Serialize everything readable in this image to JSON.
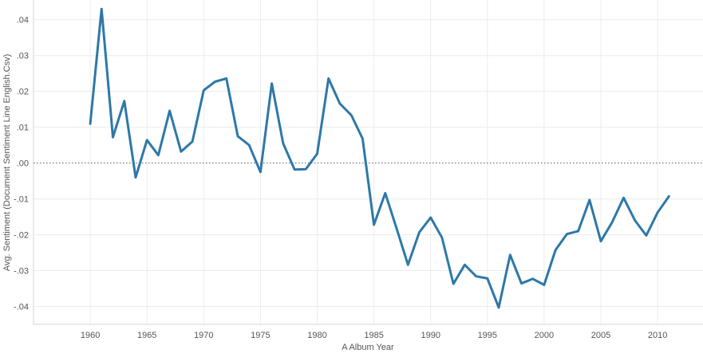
{
  "chart_data": {
    "type": "line",
    "title": "",
    "xlabel": "A Album Year",
    "ylabel": "Avg. Sentiment (Document Sentiment Line English.Csv)",
    "xlim": [
      1955,
      2014
    ],
    "ylim": [
      -0.045,
      0.0455
    ],
    "x_ticks": [
      1960,
      1965,
      1970,
      1975,
      1980,
      1985,
      1990,
      1995,
      2000,
      2005,
      2010
    ],
    "x_tick_labels": [
      "1960",
      "1965",
      "1970",
      "1975",
      "1980",
      "1985",
      "1990",
      "1995",
      "2000",
      "2005",
      "2010"
    ],
    "y_ticks": [
      0.04,
      0.03,
      0.02,
      0.01,
      0.0,
      -0.01,
      -0.02,
      -0.03,
      -0.04
    ],
    "y_tick_labels": [
      ".04",
      ".03",
      ".02",
      ".01",
      ".00",
      "-.01",
      "-.02",
      "-.03",
      "-.04"
    ],
    "grid": true,
    "zero_reference_line": true,
    "series": [
      {
        "color": "#2e78a8",
        "x": [
          1960,
          1961,
          1962,
          1963,
          1964,
          1965,
          1966,
          1967,
          1968,
          1969,
          1970,
          1971,
          1972,
          1973,
          1974,
          1975,
          1976,
          1977,
          1978,
          1979,
          1980,
          1981,
          1982,
          1983,
          1984,
          1985,
          1986,
          1987,
          1988,
          1989,
          1990,
          1991,
          1992,
          1993,
          1994,
          1995,
          1996,
          1997,
          1998,
          1999,
          2000,
          2001,
          2002,
          2003,
          2004,
          2005,
          2006,
          2007,
          2008,
          2009,
          2010,
          2011
        ],
        "values": [
          0.011,
          0.043,
          0.0072,
          0.0173,
          -0.004,
          0.0064,
          0.0022,
          0.0146,
          0.0032,
          0.006,
          0.0203,
          0.0227,
          0.0236,
          0.0075,
          0.005,
          -0.0025,
          0.0222,
          0.0055,
          -0.0018,
          -0.0017,
          0.0026,
          0.0236,
          0.0166,
          0.0134,
          0.0068,
          -0.0172,
          -0.0084,
          -0.0183,
          -0.0284,
          -0.0193,
          -0.0152,
          -0.0208,
          -0.0337,
          -0.0284,
          -0.0316,
          -0.0322,
          -0.0403,
          -0.0256,
          -0.0336,
          -0.0323,
          -0.034,
          -0.0243,
          -0.0198,
          -0.019,
          -0.0103,
          -0.0218,
          -0.0165,
          -0.0097,
          -0.016,
          -0.0202,
          -0.0138,
          -0.0093
        ]
      }
    ]
  }
}
